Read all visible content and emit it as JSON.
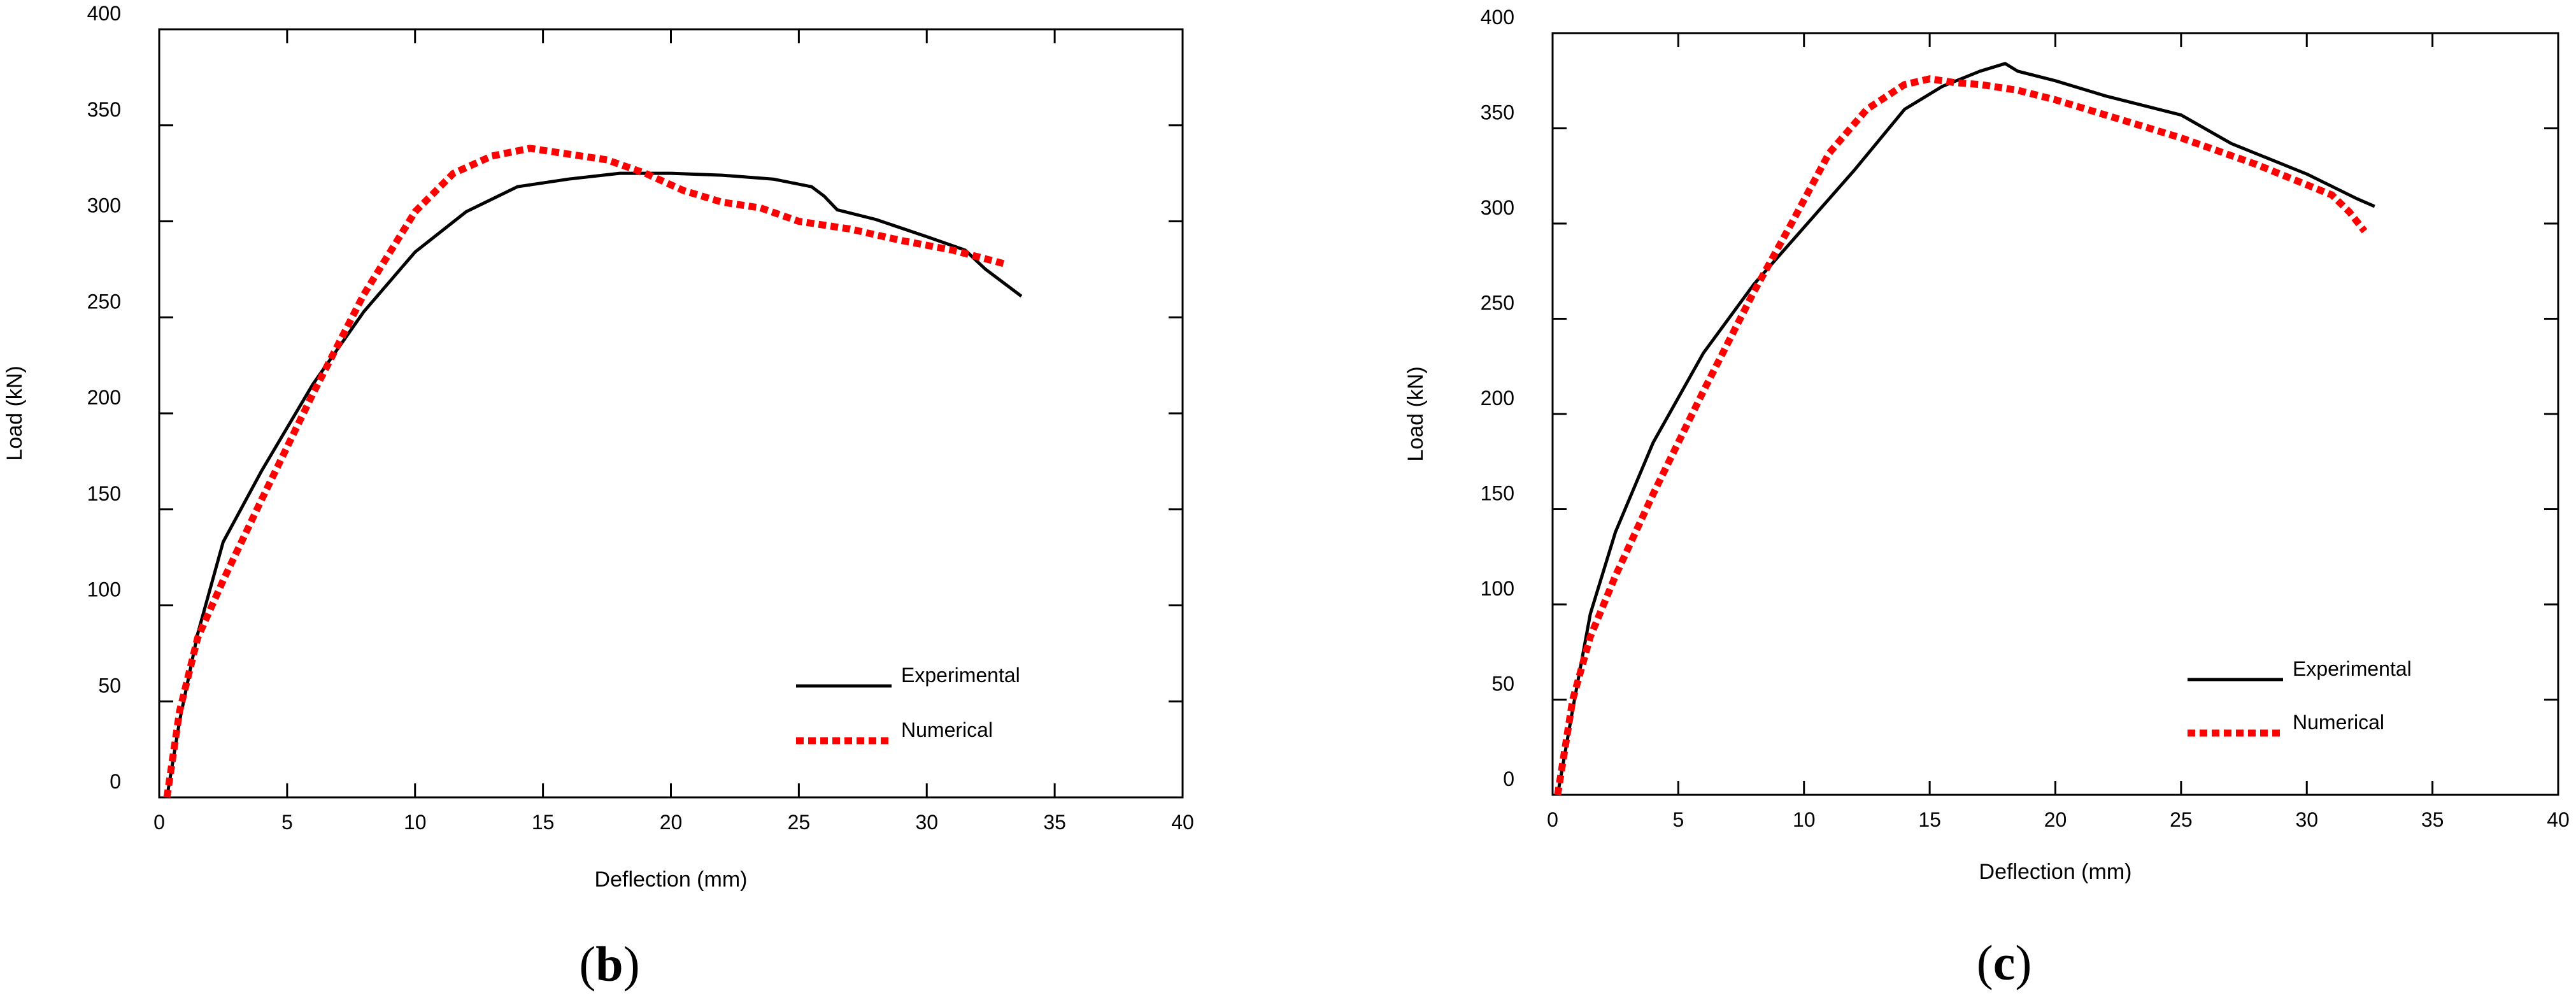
{
  "chart_data": [
    {
      "type": "line",
      "panel_label": "b",
      "xlabel": "Deflection (mm)",
      "ylabel": "Load (kN)",
      "xlim": [
        0,
        40
      ],
      "ylim": [
        0,
        400
      ],
      "xticks": [
        0,
        5,
        10,
        15,
        20,
        25,
        30,
        35,
        40
      ],
      "yticks": [
        0,
        50,
        100,
        150,
        200,
        250,
        300,
        350,
        400
      ],
      "xtick_labels": [
        "0",
        "5",
        "10",
        "15",
        "20",
        "25",
        "30",
        "35",
        "40"
      ],
      "ytick_labels": [
        "0",
        "50",
        "100",
        "150",
        "200",
        "250",
        "300",
        "350",
        "400"
      ],
      "grid": false,
      "legend_position": "bottom-right",
      "series": [
        {
          "name": "Experimental",
          "color": "#000000",
          "style": "solid",
          "x": [
            0.3,
            0.8,
            1.5,
            2.5,
            4.0,
            6.0,
            8.0,
            10.0,
            12.0,
            14.0,
            16.0,
            18.0,
            20.0,
            22.0,
            24.0,
            25.5,
            26.0,
            26.5,
            28.0,
            30.0,
            31.5,
            32.3,
            33.0,
            33.7
          ],
          "y": [
            0,
            40,
            85,
            133,
            170,
            215,
            253,
            284,
            305,
            318,
            322,
            325,
            325,
            324,
            322,
            318,
            313,
            306,
            301,
            292,
            285,
            275,
            268,
            261
          ]
        },
        {
          "name": "Numerical",
          "color": "#ff0000",
          "style": "dotted",
          "x": [
            0.3,
            0.8,
            1.5,
            2.5,
            4.0,
            6.0,
            8.0,
            10.0,
            11.5,
            13.0,
            14.5,
            16.0,
            17.5,
            19.0,
            20.5,
            22.0,
            23.5,
            25.0,
            27.0,
            29.0,
            31.0,
            33.0
          ],
          "y": [
            0,
            45,
            83,
            113,
            155,
            210,
            262,
            305,
            325,
            334,
            338,
            335,
            332,
            325,
            316,
            310,
            307,
            300,
            296,
            290,
            285,
            278
          ]
        }
      ]
    },
    {
      "type": "line",
      "panel_label": "c",
      "xlabel": "Deflection (mm)",
      "ylabel": "Load (kN)",
      "xlim": [
        0,
        40
      ],
      "ylim": [
        0,
        400
      ],
      "xticks": [
        0,
        5,
        10,
        15,
        20,
        25,
        30,
        35,
        40
      ],
      "yticks": [
        0,
        50,
        100,
        150,
        200,
        250,
        300,
        350,
        400
      ],
      "xtick_labels": [
        "0",
        "5",
        "10",
        "15",
        "20",
        "25",
        "30",
        "35",
        "40"
      ],
      "ytick_labels": [
        "0",
        "50",
        "100",
        "150",
        "200",
        "250",
        "300",
        "350",
        "400"
      ],
      "grid": false,
      "legend_position": "bottom-right",
      "series": [
        {
          "name": "Experimental",
          "color": "#000000",
          "style": "solid",
          "x": [
            0.2,
            0.8,
            1.5,
            2.5,
            4.0,
            6.0,
            8.0,
            10.0,
            12.0,
            14.0,
            15.5,
            17.0,
            18.0,
            18.5,
            20.0,
            22.0,
            25.0,
            27.0,
            30.0,
            32.0,
            32.7
          ],
          "y": [
            0,
            45,
            95,
            138,
            185,
            232,
            268,
            298,
            328,
            360,
            372,
            380,
            384,
            380,
            375,
            367,
            357,
            342,
            326,
            313,
            309
          ]
        },
        {
          "name": "Numerical",
          "color": "#ff0000",
          "style": "dotted",
          "x": [
            0.2,
            0.8,
            1.5,
            2.5,
            4.0,
            6.0,
            8.0,
            9.5,
            11.0,
            12.5,
            14.0,
            15.0,
            16.0,
            17.0,
            18.5,
            20.0,
            22.0,
            25.0,
            28.0,
            31.0,
            31.7,
            32.3
          ],
          "y": [
            0,
            50,
            83,
            115,
            158,
            212,
            264,
            300,
            337,
            360,
            373,
            376,
            374,
            373,
            370,
            365,
            357,
            345,
            331,
            315,
            306,
            296
          ]
        }
      ]
    }
  ]
}
